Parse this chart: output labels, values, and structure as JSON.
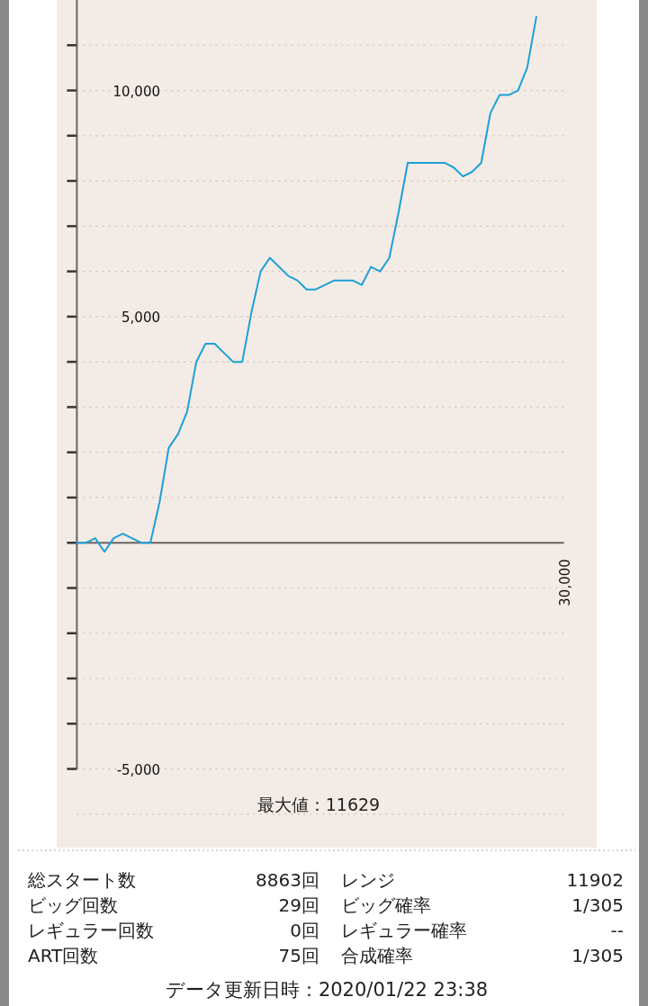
{
  "chart_data": {
    "type": "line",
    "color": "#1ba1d6",
    "line_style": "solid",
    "marker": "none",
    "grid": "y",
    "ylim": [
      -6700,
      12000
    ],
    "yticks": [
      {
        "value": 11000,
        "label": null
      },
      {
        "value": 10000,
        "label": "10,000"
      },
      {
        "value": 9000,
        "label": null
      },
      {
        "value": 8000,
        "label": null
      },
      {
        "value": 7000,
        "label": null
      },
      {
        "value": 6000,
        "label": null
      },
      {
        "value": 5000,
        "label": "5,000"
      },
      {
        "value": 4000,
        "label": null
      },
      {
        "value": 3000,
        "label": null
      },
      {
        "value": 2000,
        "label": null
      },
      {
        "value": 1000,
        "label": null
      },
      {
        "value": 0,
        "label": null
      },
      {
        "value": -1000,
        "label": null
      },
      {
        "value": -2000,
        "label": null
      },
      {
        "value": -3000,
        "label": null
      },
      {
        "value": -4000,
        "label": null
      },
      {
        "value": -5000,
        "label": "-5,000"
      },
      {
        "value": -6000,
        "label": null
      }
    ],
    "categories": [
      null,
      null,
      null,
      null,
      null,
      null,
      null,
      null,
      null,
      null,
      null,
      null,
      null,
      null,
      null,
      null,
      null,
      null,
      null,
      null,
      null,
      null,
      null,
      null,
      null,
      null,
      null,
      null,
      null,
      null,
      null,
      null,
      null,
      null,
      null,
      null,
      null,
      null,
      null,
      null,
      null,
      null,
      null,
      null,
      null,
      null,
      null,
      null,
      null,
      null,
      null,
      null,
      null,
      null
    ],
    "values": [
      0,
      0,
      100,
      -200,
      100,
      200,
      100,
      0,
      0,
      900,
      2100,
      2400,
      2900,
      4000,
      4400,
      4400,
      4200,
      4000,
      4000,
      5100,
      6000,
      6300,
      6100,
      5900,
      5800,
      5600,
      5600,
      5700,
      5800,
      5800,
      5800,
      5700,
      6100,
      6000,
      6300,
      7300,
      8400,
      8400,
      8400,
      8400,
      8400,
      8300,
      8100,
      8200,
      8400,
      9500,
      9900,
      9900,
      10000,
      10500,
      11629,
      null,
      null,
      null
    ],
    "annotations": [
      "30,000",
      "最大値：11629",
      "総スタート数",
      "8863回",
      "レンジ",
      "11902",
      "ビッグ回数",
      "29回",
      "ビッグ確率",
      "1/305",
      "レギュラー回数",
      "0回",
      "レギュラー確率",
      "--",
      "ART回数",
      "75回",
      "合成確率",
      "1/305",
      "データ更新日時：2020/01/22 23:38"
    ]
  }
}
